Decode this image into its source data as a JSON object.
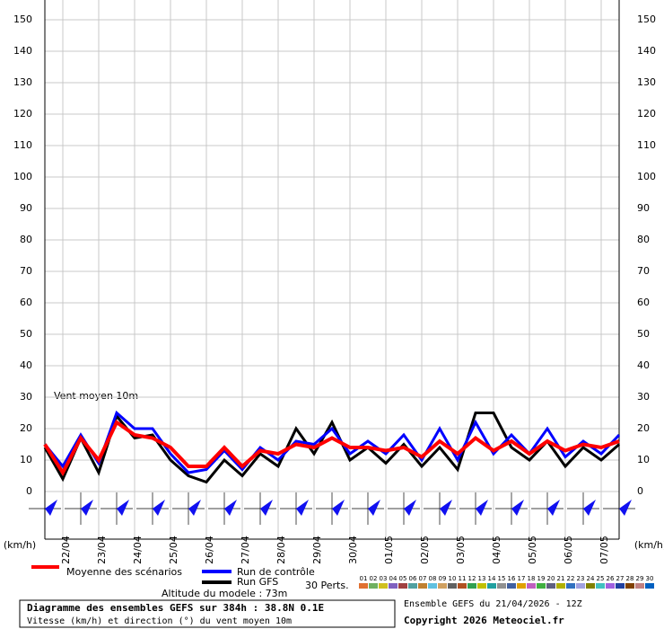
{
  "chart_data": {
    "type": "line",
    "annotation": "Vent moyen 10m",
    "unit_label": "(km/h)",
    "x": [
      0,
      12,
      24,
      36,
      48,
      60,
      72,
      84,
      96,
      108,
      120,
      132,
      144,
      156,
      168,
      180,
      192,
      204,
      216,
      228,
      240,
      252,
      264,
      276,
      288,
      300,
      312,
      324,
      336,
      348,
      360,
      372,
      384
    ],
    "xlim": [
      0,
      384
    ],
    "xticks": [
      {
        "value": 12,
        "label": "22/04"
      },
      {
        "value": 36,
        "label": "23/04"
      },
      {
        "value": 60,
        "label": "24/04"
      },
      {
        "value": 84,
        "label": "25/04"
      },
      {
        "value": 108,
        "label": "26/04"
      },
      {
        "value": 132,
        "label": "27/04"
      },
      {
        "value": 156,
        "label": "28/04"
      },
      {
        "value": 180,
        "label": "29/04"
      },
      {
        "value": 204,
        "label": "30/04"
      },
      {
        "value": 228,
        "label": "01/05"
      },
      {
        "value": 252,
        "label": "02/05"
      },
      {
        "value": 276,
        "label": "03/05"
      },
      {
        "value": 300,
        "label": "04/05"
      },
      {
        "value": 324,
        "label": "05/05"
      },
      {
        "value": 348,
        "label": "06/05"
      },
      {
        "value": 372,
        "label": "07/05"
      }
    ],
    "ylim": [
      0,
      150
    ],
    "yticks": [
      0,
      10,
      20,
      30,
      40,
      50,
      60,
      70,
      80,
      90,
      100,
      110,
      120,
      130,
      140,
      150
    ],
    "grid": true,
    "series": [
      {
        "name": "Moyenne des scénarios",
        "color": "#ff0000",
        "values": [
          15,
          6,
          17,
          10,
          22,
          18,
          17,
          14,
          8,
          8,
          14,
          8,
          13,
          12,
          15,
          14,
          17,
          14,
          14,
          13,
          14,
          11,
          16,
          12,
          17,
          13,
          16,
          12,
          16,
          13,
          15,
          14,
          16
        ]
      },
      {
        "name": "Run de contrôle",
        "color": "#0000ff",
        "values": [
          15,
          8,
          18,
          9,
          25,
          20,
          20,
          12,
          6,
          7,
          13,
          7,
          14,
          10,
          16,
          15,
          20,
          12,
          16,
          12,
          18,
          10,
          20,
          10,
          22,
          12,
          18,
          12,
          20,
          11,
          16,
          12,
          18
        ]
      },
      {
        "name": "Run GFS",
        "color": "#000000",
        "values": [
          14,
          4,
          17,
          6,
          24,
          17,
          18,
          10,
          5,
          3,
          10,
          5,
          12,
          8,
          20,
          12,
          22,
          10,
          14,
          9,
          15,
          8,
          14,
          7,
          25,
          25,
          14,
          10,
          16,
          8,
          14,
          10,
          15
        ]
      }
    ],
    "perturbations_label": "30 Perts.",
    "perturbation_ids": [
      "01",
      "02",
      "03",
      "04",
      "05",
      "06",
      "07",
      "08",
      "09",
      "10",
      "11",
      "12",
      "13",
      "14",
      "15",
      "16",
      "17",
      "18",
      "19",
      "20",
      "21",
      "22",
      "23",
      "24",
      "25",
      "26",
      "27",
      "28",
      "29",
      "30"
    ],
    "perturbation_colors": [
      "#e07030",
      "#70b060",
      "#d0c020",
      "#8060c0",
      "#a04040",
      "#50a0a0",
      "#c08030",
      "#60c0e0",
      "#d0a060",
      "#606060",
      "#b05020",
      "#30a050",
      "#c0c000",
      "#20a0a0",
      "#909090",
      "#4060a0",
      "#e0a000",
      "#c060c0",
      "#40b040",
      "#606080",
      "#b0b000",
      "#3070c0",
      "#a0a0e0",
      "#808000",
      "#40c0c0",
      "#a060e0",
      "#2040a0",
      "#804000",
      "#c08080",
      "#0060c0"
    ],
    "altitude": "Altitude du modele : 73m",
    "footer_title": "Diagramme des ensembles GEFS sur 384h : 38.8N 0.1E",
    "footer_subtitle": "Vitesse (km/h) et direction (°) du vent moyen 10m",
    "run_info": "Ensemble GEFS du 21/04/2026 - 12Z",
    "copyright": "Copyright 2026 Meteociel.fr"
  }
}
